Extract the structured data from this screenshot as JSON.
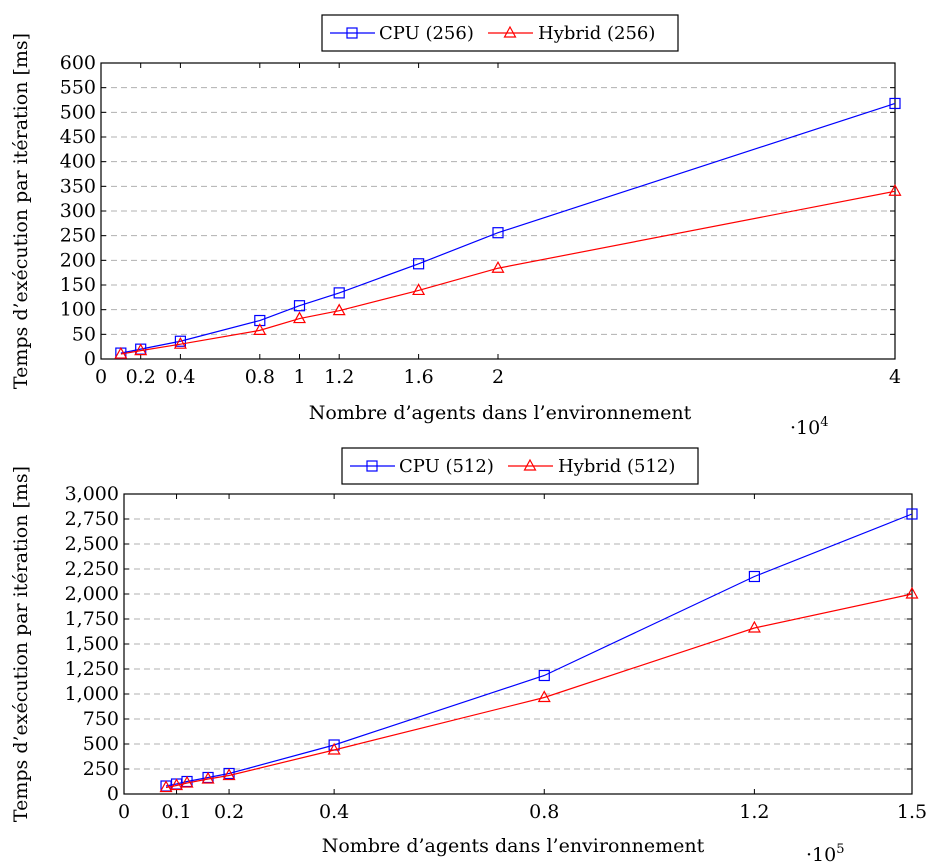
{
  "chart_data": [
    {
      "type": "line",
      "xlabel": "Nombre d’agents dans l’environnement",
      "ylabel": "Temps d’exécution par itération [ms]",
      "x_scale_label": "·10",
      "x_scale_exp": "4",
      "xlim": [
        0,
        4
      ],
      "ylim": [
        0,
        600
      ],
      "x_ticks": [
        0,
        0.2,
        0.4,
        0.8,
        1,
        1.2,
        1.6,
        2,
        4
      ],
      "x_tick_labels": [
        "0",
        "0.2",
        "0.4",
        "0.8",
        "1",
        "1.2",
        "1.6",
        "2",
        "4"
      ],
      "y_ticks": [
        0,
        50,
        100,
        150,
        200,
        250,
        300,
        350,
        400,
        450,
        500,
        550,
        600
      ],
      "y_tick_labels": [
        "0",
        "50",
        "100",
        "150",
        "200",
        "250",
        "300",
        "350",
        "400",
        "450",
        "500",
        "550",
        "600"
      ],
      "grid": "horizontal dashed",
      "legend_position": "top-center",
      "series": [
        {
          "name": "CPU (256)",
          "color": "#0000ff",
          "marker": "square",
          "x": [
            0.1,
            0.2,
            0.4,
            0.8,
            1,
            1.2,
            1.6,
            2,
            4
          ],
          "values": [
            12,
            20,
            36,
            78,
            108,
            134,
            193,
            256,
            518
          ]
        },
        {
          "name": "Hybrid (256)",
          "color": "#ff0000",
          "marker": "triangle",
          "x": [
            0.1,
            0.2,
            0.4,
            0.8,
            1,
            1.2,
            1.6,
            2,
            4
          ],
          "values": [
            10,
            17,
            30,
            58,
            82,
            98,
            139,
            184,
            340
          ]
        }
      ]
    },
    {
      "type": "line",
      "xlabel": "Nombre d’agents dans l’environnement",
      "ylabel": "Temps d’exécution par itération [ms]",
      "x_scale_label": "·10",
      "x_scale_exp": "5",
      "xlim": [
        0,
        1.5
      ],
      "ylim": [
        0,
        3000
      ],
      "x_ticks": [
        0,
        0.1,
        0.2,
        0.4,
        0.8,
        1.2,
        1.5
      ],
      "x_tick_labels": [
        "0",
        "0.1",
        "0.2",
        "0.4",
        "0.8",
        "1.2",
        "1.5"
      ],
      "y_ticks": [
        0,
        250,
        500,
        750,
        1000,
        1250,
        1500,
        1750,
        2000,
        2250,
        2500,
        2750,
        3000
      ],
      "y_tick_labels": [
        "0",
        "250",
        "500",
        "750",
        "1,000",
        "1,250",
        "1,500",
        "1,750",
        "2,000",
        "2,250",
        "2,500",
        "2,750",
        "3,000"
      ],
      "grid": "horizontal dashed",
      "legend_position": "top-center",
      "series": [
        {
          "name": "CPU (512)",
          "color": "#0000ff",
          "marker": "square",
          "x": [
            0.08,
            0.1,
            0.12,
            0.16,
            0.2,
            0.4,
            0.8,
            1.2,
            1.5
          ],
          "values": [
            80,
            100,
            125,
            165,
            205,
            490,
            1185,
            2175,
            2800
          ]
        },
        {
          "name": "Hybrid (512)",
          "color": "#ff0000",
          "marker": "triangle",
          "x": [
            0.08,
            0.1,
            0.12,
            0.16,
            0.2,
            0.4,
            0.8,
            1.2,
            1.5
          ],
          "values": [
            65,
            85,
            110,
            150,
            185,
            440,
            965,
            1660,
            2000
          ]
        }
      ]
    }
  ]
}
